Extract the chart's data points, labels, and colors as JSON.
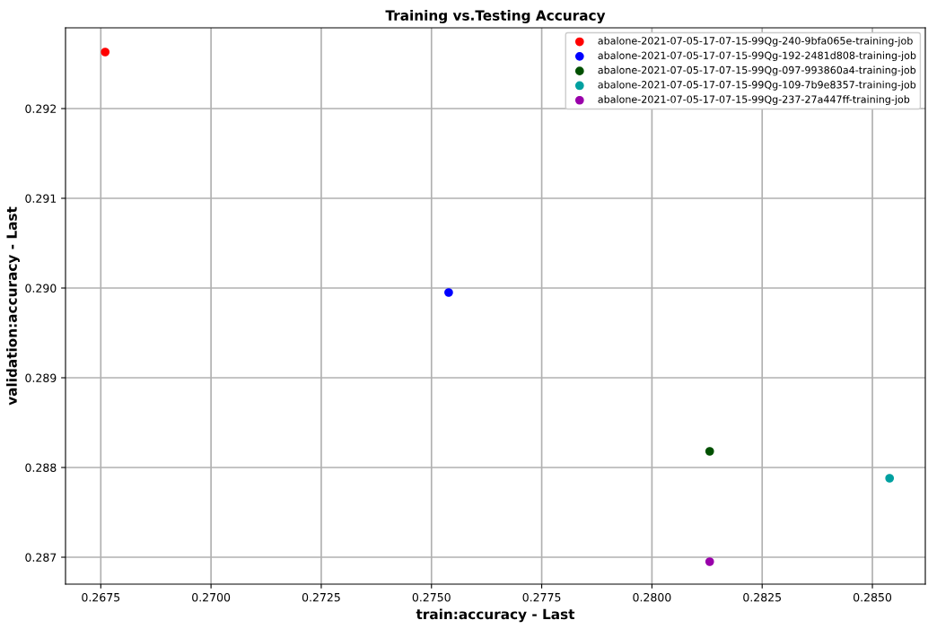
{
  "chart_data": {
    "type": "scatter",
    "title": "Training vs.Testing Accuracy",
    "xlabel": "train:accuracy - Last",
    "ylabel": "validation:accuracy - Last",
    "series": [
      {
        "name": "abalone-2021-07-05-17-07-15-99Qg-240-9bfa065e-training-job",
        "color": "#ff0000",
        "x": [
          0.2676
        ],
        "values": [
          0.29263
        ]
      },
      {
        "name": "abalone-2021-07-05-17-07-15-99Qg-192-2481d808-training-job",
        "color": "#0000ff",
        "x": [
          0.27539
        ],
        "values": [
          0.28995
        ]
      },
      {
        "name": "abalone-2021-07-05-17-07-15-99Qg-097-993860a4-training-job",
        "color": "#005000",
        "x": [
          0.28131
        ],
        "values": [
          0.28818
        ]
      },
      {
        "name": "abalone-2021-07-05-17-07-15-99Qg-109-7b9e8357-training-job",
        "color": "#00a0a0",
        "x": [
          0.28539
        ],
        "values": [
          0.28788
        ]
      },
      {
        "name": "abalone-2021-07-05-17-07-15-99Qg-237-27a447ff-training-job",
        "color": "#9900aa",
        "x": [
          0.28131
        ],
        "values": [
          0.28695
        ]
      }
    ],
    "xlim": [
      0.2667,
      0.2862
    ],
    "ylim": [
      0.2867,
      0.2929
    ],
    "xticks": [
      {
        "value": 0.2675,
        "label": "0.2675"
      },
      {
        "value": 0.27,
        "label": "0.2700"
      },
      {
        "value": 0.2725,
        "label": "0.2725"
      },
      {
        "value": 0.275,
        "label": "0.2750"
      },
      {
        "value": 0.2775,
        "label": "0.2775"
      },
      {
        "value": 0.28,
        "label": "0.2800"
      },
      {
        "value": 0.2825,
        "label": "0.2825"
      },
      {
        "value": 0.285,
        "label": "0.2850"
      }
    ],
    "yticks": [
      0.287,
      0.288,
      0.289,
      {
        "value": 0.29,
        "label": "0.290"
      },
      0.291,
      0.292
    ],
    "grid": true,
    "legend": "top right",
    "marker": "circle"
  }
}
